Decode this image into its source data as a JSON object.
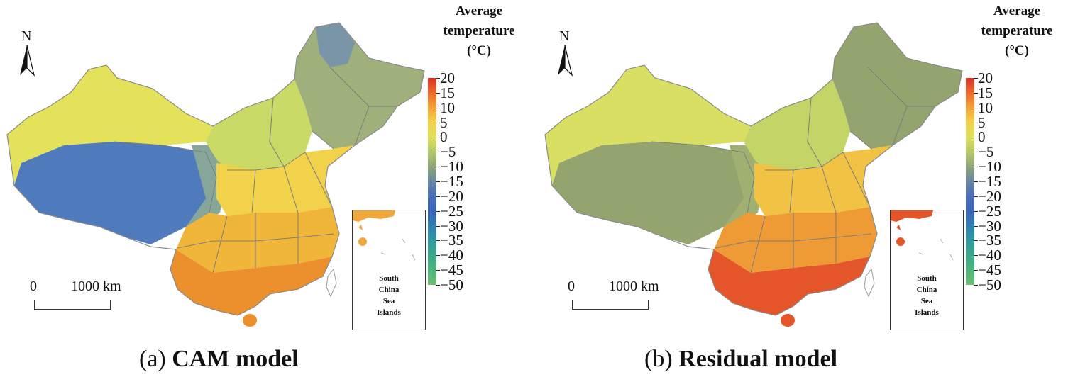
{
  "panels": [
    {
      "caption_prefix": "(a)",
      "caption_bold": "CAM model",
      "legend_title": [
        "Average",
        "temperature",
        "(°C)"
      ],
      "north_label": "N",
      "scale_zero": "0",
      "scale_distance": "1000 km",
      "inset_label": [
        "South",
        "China",
        "Sea",
        "Islands"
      ],
      "colors": {
        "northwest": "#e3e25a",
        "tibet": "#4f7bbd",
        "tibet_edge": "#86a69a",
        "northeast": "#9fb07a",
        "far_northeast": "#7b95a8",
        "north_china": "#cbd966",
        "central": "#f2d24a",
        "south": "#f0b63a",
        "far_south": "#ec8f2d",
        "hainan": "#ec8f2d",
        "inset_fill": "#f0a83a"
      }
    },
    {
      "caption_prefix": "(b)",
      "caption_bold": "Residual model",
      "legend_title": [
        "Average",
        "temperature",
        "(°C)"
      ],
      "north_label": "N",
      "scale_zero": "0",
      "scale_distance": "1000 km",
      "inset_label": [
        "South",
        "China",
        "Sea",
        "Islands"
      ],
      "colors": {
        "northwest": "#d8df62",
        "tibet": "#93a46e",
        "tibet_edge": "#9fb070",
        "northeast": "#93a46e",
        "far_northeast": "#93a46e",
        "north_china": "#c4d466",
        "central": "#f2c244",
        "south": "#ee9a35",
        "far_south": "#e4552a",
        "hainan": "#e4552a",
        "inset_fill": "#e4552a"
      }
    }
  ],
  "colorbar": {
    "ticks": [
      20,
      15,
      10,
      5,
      0,
      -5,
      -10,
      -15,
      -20,
      -25,
      -30,
      -35,
      -40,
      -45,
      -50
    ],
    "colors": [
      "#d73027",
      "#ef6a2a",
      "#f5a236",
      "#f3d34a",
      "#dfe15a",
      "#b5c96a",
      "#8ea57a",
      "#6a86a0",
      "#4a6db7",
      "#3a63b8",
      "#2f7eb0",
      "#2e9aa0",
      "#3aa88a",
      "#4db57a",
      "#6cbf72"
    ]
  }
}
